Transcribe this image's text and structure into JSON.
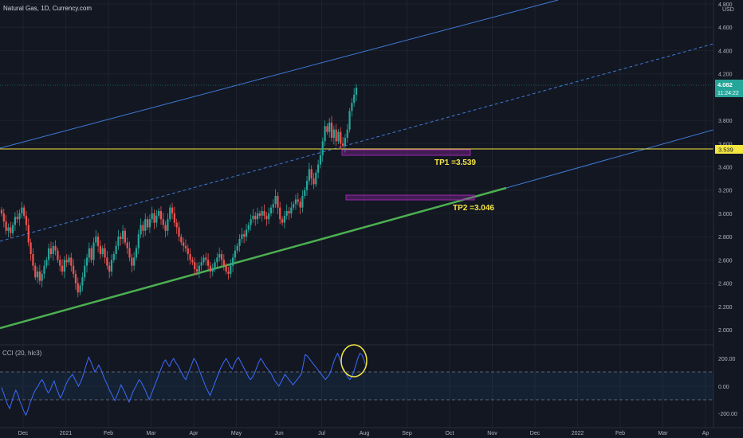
{
  "header": {
    "symbol_title": "Natural Gas, 1D, Currency.com"
  },
  "price_axis": {
    "currency": "USD",
    "ticks": [
      "4.800",
      "4.600",
      "4.400",
      "4.200",
      "3.800",
      "3.600",
      "3.400",
      "3.200",
      "3.000",
      "2.800",
      "2.600",
      "2.400",
      "2.200",
      "2.000"
    ],
    "current_price": "4.082",
    "countdown": "11:24:22",
    "line_price": "3.539"
  },
  "time_axis": {
    "labels": [
      "Dec",
      "2021",
      "Feb",
      "Mar",
      "Apr",
      "May",
      "Jun",
      "Jul",
      "Aug",
      "Sep",
      "Oct",
      "Nov",
      "Dec",
      "2022",
      "Feb",
      "Mar",
      "Ap"
    ]
  },
  "annotations": {
    "tp1": "TP1 =3.539",
    "tp2": "TP2 =3.046"
  },
  "indicator": {
    "label": "CCI (20, hlc3)",
    "ticks": [
      "200.00",
      "0.00",
      "-200.00"
    ]
  },
  "colors": {
    "background": "#131722",
    "up": "#26a69a",
    "down": "#ef5350",
    "channel": "#3d7bd6",
    "support": "#4caf50",
    "horizontal": "#f5e642",
    "tp_box": "#9c27b0",
    "cci_line": "#3d6bff",
    "circle": "#f5e642"
  },
  "chart_data": {
    "type": "candlestick",
    "ylim": [
      1.95,
      4.8
    ],
    "horizontal_line": 3.539,
    "current_price": 4.082,
    "closes": [
      3.0,
      2.93,
      2.85,
      2.88,
      2.83,
      2.9,
      2.97,
      2.95,
      3.0,
      3.05,
      2.98,
      2.9,
      2.75,
      2.65,
      2.55,
      2.45,
      2.5,
      2.42,
      2.48,
      2.55,
      2.6,
      2.7,
      2.65,
      2.72,
      2.68,
      2.6,
      2.55,
      2.5,
      2.6,
      2.58,
      2.62,
      2.55,
      2.48,
      2.4,
      2.32,
      2.38,
      2.45,
      2.55,
      2.62,
      2.7,
      2.6,
      2.75,
      2.8,
      2.72,
      2.65,
      2.7,
      2.62,
      2.55,
      2.5,
      2.6,
      2.65,
      2.72,
      2.8,
      2.78,
      2.85,
      2.75,
      2.7,
      2.62,
      2.55,
      2.62,
      2.7,
      2.82,
      2.9,
      2.85,
      2.95,
      2.88,
      2.95,
      3.0,
      2.92,
      2.98,
      3.02,
      2.95,
      2.9,
      2.85,
      2.95,
      3.05,
      3.0,
      2.92,
      2.88,
      2.8,
      2.75,
      2.72,
      2.7,
      2.65,
      2.6,
      2.58,
      2.52,
      2.5,
      2.55,
      2.58,
      2.62,
      2.6,
      2.55,
      2.5,
      2.52,
      2.58,
      2.62,
      2.65,
      2.6,
      2.55,
      2.5,
      2.48,
      2.55,
      2.62,
      2.68,
      2.72,
      2.78,
      2.82,
      2.8,
      2.86,
      2.9,
      2.95,
      2.98,
      2.95,
      3.0,
      2.98,
      3.02,
      2.98,
      2.95,
      3.0,
      3.05,
      3.08,
      3.15,
      3.05,
      2.95,
      2.92,
      2.98,
      3.02,
      3.0,
      3.05,
      3.08,
      3.12,
      3.1,
      3.05,
      3.15,
      3.2,
      3.28,
      3.38,
      3.3,
      3.25,
      3.35,
      3.42,
      3.5,
      3.62,
      3.75,
      3.7,
      3.78,
      3.65,
      3.72,
      3.62,
      3.7,
      3.6,
      3.58,
      3.65,
      3.72,
      3.88,
      3.95,
      4.02,
      4.08
    ]
  },
  "cci_data": {
    "ylim": [
      -300,
      280
    ],
    "levels": [
      100,
      -100
    ],
    "values": [
      -20,
      -60,
      -110,
      -150,
      -180,
      -130,
      -80,
      -40,
      -70,
      -120,
      -160,
      -200,
      -230,
      -190,
      -140,
      -100,
      -60,
      -30,
      -10,
      20,
      40,
      10,
      -30,
      -60,
      -40,
      0,
      30,
      -20,
      -60,
      -100,
      -70,
      -30,
      10,
      40,
      60,
      80,
      50,
      20,
      -10,
      20,
      60,
      110,
      160,
      210,
      180,
      140,
      100,
      120,
      150,
      120,
      80,
      40,
      10,
      -30,
      -60,
      -90,
      -120,
      -80,
      -40,
      0,
      -30,
      -60,
      -100,
      -130,
      -90,
      -50,
      -20,
      10,
      40,
      20,
      -10,
      -40,
      -80,
      -110,
      -70,
      -30,
      10,
      50,
      90,
      130,
      170,
      190,
      160,
      140,
      180,
      200,
      170,
      150,
      120,
      90,
      60,
      40,
      80,
      120,
      160,
      200,
      180,
      140,
      100,
      60,
      20,
      -20,
      -50,
      -80,
      -40,
      0,
      40,
      80,
      120,
      150,
      180,
      200,
      170,
      140,
      120,
      160,
      190,
      210,
      180,
      150,
      120,
      90,
      60,
      40,
      60,
      90,
      130,
      170,
      200,
      180,
      150,
      130,
      110,
      90,
      60,
      30,
      10,
      -10,
      20,
      50,
      80,
      60,
      40,
      20,
      0,
      20,
      40,
      60,
      80,
      150,
      230,
      220,
      200,
      180,
      160,
      140,
      120,
      100,
      80,
      60,
      40,
      60,
      80,
      120,
      170,
      210,
      240,
      200,
      150,
      120,
      90,
      60,
      40,
      60,
      100,
      150,
      200,
      240,
      230,
      190,
      150
    ]
  }
}
